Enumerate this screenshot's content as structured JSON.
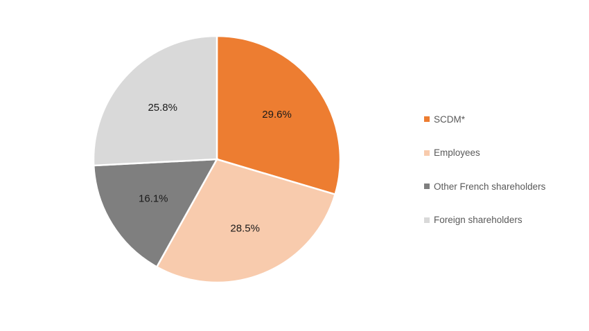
{
  "chart_data": {
    "type": "pie",
    "categories": [
      "SCDM*",
      "Employees",
      "Other French shareholders",
      "Foreign shareholders"
    ],
    "values": [
      29.6,
      28.5,
      16.1,
      25.8
    ],
    "value_labels": [
      "29.6%",
      "28.5%",
      "16.1%",
      "25.8%"
    ],
    "colors": [
      "#ED7D31",
      "#F8CBAD",
      "#7F7F7F",
      "#D9D9D9"
    ],
    "start_angle": "12 o'clock",
    "direction": "clockwise",
    "legend_position": "right"
  }
}
